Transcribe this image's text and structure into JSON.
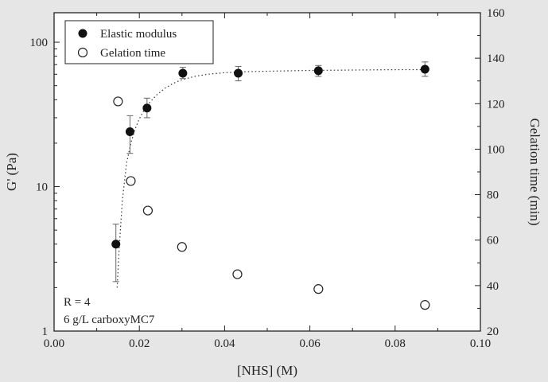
{
  "chart_data": {
    "type": "scatter",
    "x_axis": {
      "label": "[NHS] (M)",
      "range": [
        0.0,
        0.1
      ],
      "ticks": [
        "0.00",
        "0.02",
        "0.04",
        "0.06",
        "0.08",
        "0.10"
      ]
    },
    "y_axis_left": {
      "label": "G' (Pa)",
      "scale": "log",
      "range": [
        1,
        160
      ],
      "ticks": [
        "1",
        "10",
        "100"
      ]
    },
    "y_axis_right": {
      "label": "Gelation time (min)",
      "scale": "linear",
      "range": [
        20,
        160
      ],
      "ticks": [
        "20",
        "40",
        "60",
        "80",
        "100",
        "120",
        "140",
        "160"
      ]
    },
    "series": [
      {
        "name": "Elastic modulus",
        "marker": "filled-circle",
        "axis": "left",
        "x": [
          0.0145,
          0.0178,
          0.0218,
          0.0302,
          0.0432,
          0.062,
          0.087
        ],
        "y": [
          4.0,
          24.0,
          35.0,
          61.0,
          61.0,
          63.5,
          65.0
        ],
        "err_low": [
          2.2,
          17.0,
          30.0,
          56.0,
          54.0,
          58.0,
          58.0
        ],
        "err_high": [
          5.5,
          31.0,
          41.0,
          67.0,
          68.0,
          69.0,
          73.0
        ]
      },
      {
        "name": "Gelation time",
        "marker": "open-circle",
        "axis": "right",
        "x": [
          0.015,
          0.018,
          0.022,
          0.03,
          0.043,
          0.062,
          0.087
        ],
        "y": [
          121,
          86,
          73,
          57,
          45,
          38.5,
          31.5
        ]
      }
    ],
    "fit_curve": {
      "style": "dotted",
      "x": [
        0.0148,
        0.0152,
        0.016,
        0.017,
        0.018,
        0.019,
        0.02,
        0.021,
        0.022,
        0.024,
        0.026,
        0.028,
        0.03,
        0.033,
        0.036,
        0.04,
        0.045,
        0.05,
        0.06,
        0.07,
        0.08,
        0.087
      ],
      "y": [
        2.0,
        3.5,
        8.0,
        14.5,
        20.0,
        25.0,
        29.5,
        33.5,
        37.0,
        43.0,
        48.0,
        52.0,
        55.0,
        58.0,
        60.0,
        61.5,
        62.5,
        63.0,
        63.8,
        64.2,
        64.5,
        64.6
      ]
    },
    "legend": {
      "position": "top-left",
      "entries": [
        "Elastic modulus",
        "Gelation time"
      ]
    },
    "annotations": [
      "R = 4",
      "6 g/L carboxyMC7"
    ],
    "grid": false
  }
}
